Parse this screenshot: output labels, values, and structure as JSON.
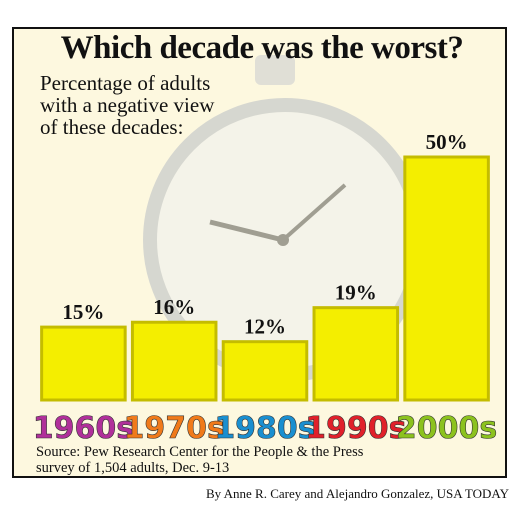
{
  "chart_data": {
    "type": "bar",
    "title": "Which decade was the worst?",
    "subtitle": "Percentage of adults with a negative view of these decades:",
    "categories": [
      "1960s",
      "1970s",
      "1980s",
      "1990s",
      "2000s"
    ],
    "category_colors": [
      "#b0309a",
      "#f07a1a",
      "#1a8fd0",
      "#e0202a",
      "#8cc21e"
    ],
    "values": [
      15,
      16,
      12,
      19,
      50
    ],
    "value_labels": [
      "15%",
      "16%",
      "12%",
      "19%",
      "50%"
    ],
    "color": "#f4ee00",
    "source": "Source: Pew Research Center for the People & the Press survey of 1,504 adults, Dec. 9-13",
    "byline": "By Anne R. Carey and Alejandro Gonzalez, USA TODAY"
  }
}
